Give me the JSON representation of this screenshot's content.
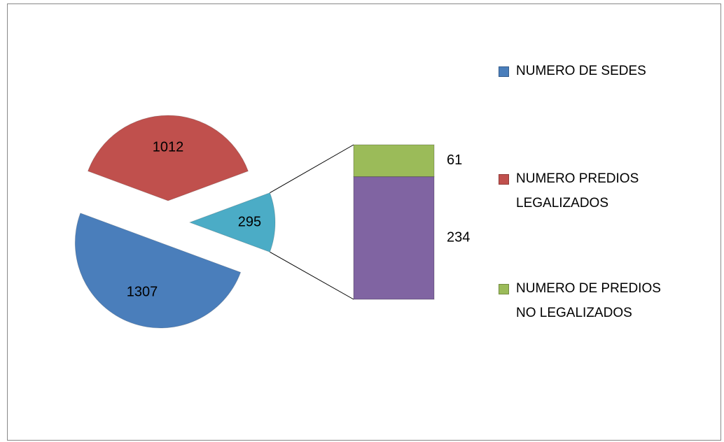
{
  "chart_data": {
    "type": "bar-of-pie",
    "pie": [
      {
        "name": "NUMERO DE SEDES",
        "color": "#4a7ebb",
        "value": 1307
      },
      {
        "name": "NUMERO PREDIOS LEGALIZADOS",
        "color": "#c0504d",
        "value": 1012
      }
    ],
    "other": {
      "color": "#4bacc6",
      "value": 295
    },
    "bar": [
      {
        "name": "NUMERO DE PREDIOS NO LEGALIZADOS",
        "color": "#9bbb59",
        "value": 61
      },
      {
        "color": "#8064a2",
        "value": 234
      }
    ]
  }
}
